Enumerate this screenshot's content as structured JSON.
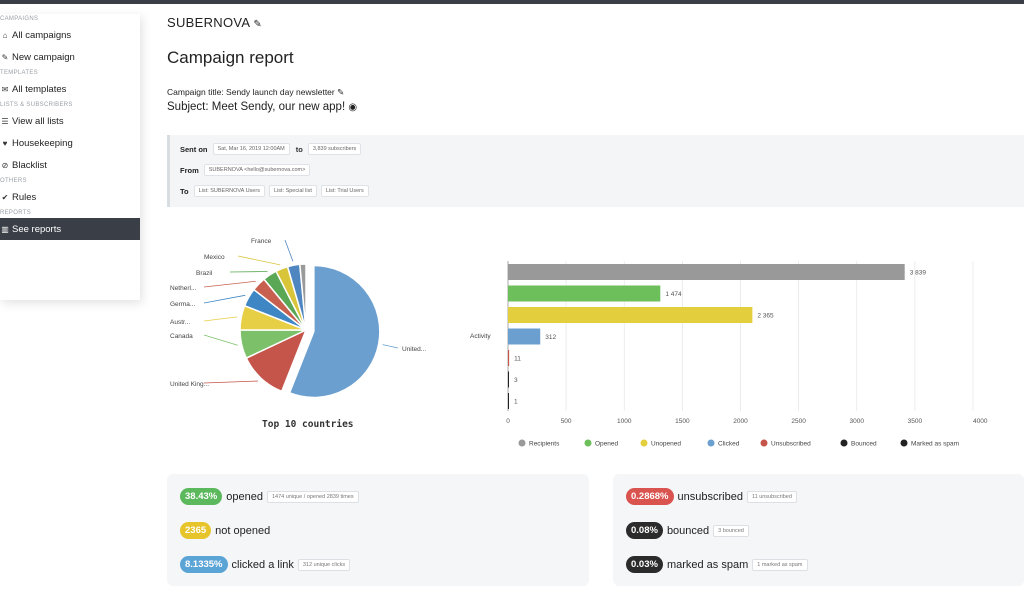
{
  "sidebar": {
    "sections": [
      {
        "title": "CAMPAIGNS",
        "items": [
          {
            "label": "All campaigns",
            "icon": "home-icon",
            "glyph": "⌂"
          },
          {
            "label": "New campaign",
            "icon": "edit-icon",
            "glyph": "✎"
          }
        ]
      },
      {
        "title": "TEMPLATES",
        "items": [
          {
            "label": "All templates",
            "icon": "envelope-icon",
            "glyph": "✉"
          }
        ]
      },
      {
        "title": "LISTS & SUBSCRIBERS",
        "items": [
          {
            "label": "View all lists",
            "icon": "list-icon",
            "glyph": "☰"
          },
          {
            "label": "Housekeeping",
            "icon": "heart-icon",
            "glyph": "♥"
          },
          {
            "label": "Blacklist",
            "icon": "ban-icon",
            "glyph": "⊘"
          }
        ]
      },
      {
        "title": "OTHERS",
        "items": [
          {
            "label": "Rules",
            "icon": "check-icon",
            "glyph": "✔"
          }
        ]
      },
      {
        "title": "REPORTS",
        "items": [
          {
            "label": "See reports",
            "icon": "chart-icon",
            "glyph": "▥",
            "active": true
          }
        ]
      }
    ]
  },
  "header": {
    "brand": "SUBERNOVA",
    "page_title": "Campaign report",
    "campaign_title": "Campaign title: Sendy launch day newsletter",
    "subject": "Subject: Meet Sendy, our new app!"
  },
  "info": {
    "sent_on_label": "Sent on",
    "sent_on": "Sat, Mar 16, 2019 12:00AM",
    "to_label": "to",
    "subscribers": "3,839 subscribers",
    "from_label": "From",
    "from": "SUBERNOVA <hello@subernova.com>",
    "lists_label": "To",
    "lists": [
      "List: SUBERNOVA Users",
      "List: Special list",
      "List: Trial Users"
    ]
  },
  "chart_data": [
    {
      "type": "pie",
      "title": "Top 10 countries",
      "categories": [
        "United...",
        "United King...",
        "Canada",
        "Austr...",
        "Germa...",
        "Netherl...",
        "Brazil",
        "Mexico",
        "France",
        ""
      ],
      "values": [
        56,
        12,
        7,
        6,
        4.5,
        3.5,
        3.5,
        3,
        3,
        1.5
      ],
      "colors": [
        "#6a9fcf",
        "#c5554b",
        "#7cc16a",
        "#e6ce45",
        "#3f86c4",
        "#c8604f",
        "#5aa855",
        "#d9c53a",
        "#4f86c0",
        "#9a9a9a"
      ]
    },
    {
      "type": "bar",
      "orientation": "horizontal",
      "categories": [
        "Recipients",
        "Opened",
        "Unopened",
        "Clicked",
        "Unsubscribed",
        "Bounced",
        "Marked as spam"
      ],
      "values": [
        3839,
        1474,
        2365,
        312,
        11,
        3,
        1
      ],
      "value_labels": [
        "3 839",
        "1 474",
        "2 365",
        "312",
        "11",
        "3",
        "1"
      ],
      "colors": [
        "#999999",
        "#6cbf5a",
        "#e3ce3d",
        "#6a9fcf",
        "#c5554b",
        "#222222",
        "#222222"
      ],
      "ylabel": "Activity",
      "xlim": [
        0,
        4500
      ],
      "xticks": [
        "0",
        "500",
        "1000",
        "1500",
        "2000",
        "2500",
        "3000",
        "3500",
        "4000",
        "450"
      ],
      "legend_position": "bottom",
      "grid": true
    }
  ],
  "stats_left": [
    {
      "badge": "38.43%",
      "color": "#5cb85c",
      "text": "opened",
      "detail": "1474 unique / opened 2839 times"
    },
    {
      "badge": "2365",
      "color": "#e6c42a",
      "text": "not opened",
      "detail": ""
    },
    {
      "badge": "8.1335%",
      "color": "#5ba4d6",
      "text": "clicked a link",
      "detail": "312 unique clicks"
    }
  ],
  "stats_right": [
    {
      "badge": "0.2868%",
      "color": "#d9534f",
      "text": "unsubscribed",
      "detail": "11 unsubscribed"
    },
    {
      "badge": "0.08%",
      "color": "#2b2b2b",
      "text": "bounced",
      "detail": "3 bounced"
    },
    {
      "badge": "0.03%",
      "color": "#2b2b2b",
      "text": "marked as spam",
      "detail": "1 marked as spam"
    }
  ]
}
